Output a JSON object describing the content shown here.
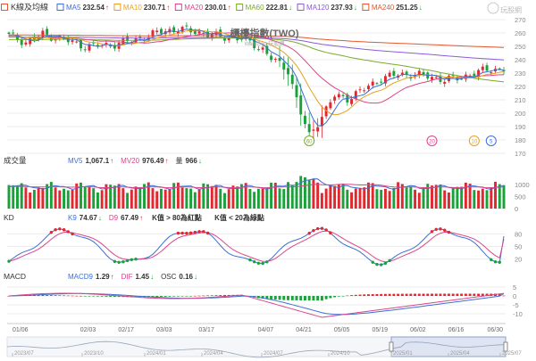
{
  "price_panel": {
    "title": "K線及均線",
    "ma": [
      {
        "label": "MA5",
        "value": "232.54",
        "arrow": "↑",
        "color": "#3d6fd6"
      },
      {
        "label": "MA10",
        "value": "230.71",
        "arrow": "↑",
        "color": "#e7a21f"
      },
      {
        "label": "MA20",
        "value": "230.01",
        "arrow": "↑",
        "color": "#d9468b"
      },
      {
        "label": "MA60",
        "value": "222.81",
        "arrow": "↓",
        "color": "#7aab2a"
      },
      {
        "label": "MA120",
        "value": "237.93",
        "arrow": "↓",
        "color": "#8a5cd6"
      },
      {
        "label": "MA240",
        "value": "251.25",
        "arrow": "↓",
        "color": "#e4572e"
      }
    ],
    "watermark": "櫃檯指數(TWO)",
    "watermark_sub": "WantGoo 玩股網",
    "logo_text": "玩股網",
    "yticks": [
      170,
      180,
      190,
      200,
      210,
      220,
      230,
      240,
      250,
      260,
      270
    ],
    "markers": [
      {
        "label": "60",
        "color": "#7aab2a"
      },
      {
        "label": "20",
        "color": "#d9468b"
      },
      {
        "label": "10",
        "color": "#e7a21f"
      },
      {
        "label": "5",
        "color": "#3d6fd6"
      }
    ]
  },
  "volume_panel": {
    "title": "成交量",
    "items": [
      {
        "label": "MV5",
        "value": "1,067.1",
        "arrow": "↑",
        "color": "#3d6fd6"
      },
      {
        "label": "MV20",
        "value": "976.49",
        "arrow": "↑",
        "color": "#d9468b"
      },
      {
        "label": "量",
        "value": "966",
        "arrow": "↓",
        "color": "#333333"
      }
    ],
    "yticks": [
      0,
      500,
      1000
    ]
  },
  "kd_panel": {
    "title": "KD",
    "items": [
      {
        "label": "K9",
        "value": "74.67",
        "arrow": "↓",
        "color": "#3d6fd6"
      },
      {
        "label": "D9",
        "value": "67.49",
        "arrow": "↑",
        "color": "#d9468b"
      }
    ],
    "notes": [
      "K值 > 80為紅點",
      "K值 < 20為綠點"
    ],
    "yticks": [
      20,
      50,
      80
    ]
  },
  "macd_panel": {
    "title": "MACD",
    "items": [
      {
        "label": "MACD9",
        "value": "1.29",
        "arrow": "↑",
        "color": "#3d6fd6"
      },
      {
        "label": "DIF",
        "value": "1.45",
        "arrow": "↓",
        "color": "#d9468b"
      },
      {
        "label": "OSC",
        "value": "0.16",
        "arrow": "↓",
        "color": "#333333"
      }
    ],
    "yticks": [
      -10,
      -5,
      0,
      5
    ]
  },
  "x_dates": [
    "01/06",
    "02/03",
    "02/17",
    "03/03",
    "03/17",
    "04/07",
    "04/21",
    "05/05",
    "05/19",
    "06/02",
    "06/16",
    "06/30"
  ],
  "nav_labels": [
    "2023/07",
    "2023/10",
    "2024/01",
    "2024/04",
    "2024/07",
    "2024/10",
    "2025/01",
    "2025/04",
    "2025/07"
  ],
  "colors": {
    "up": "#e0282e",
    "down": "#1aa13a",
    "grid": "#ececec",
    "axis": "#9a9a9a"
  },
  "chart_data": {
    "type": "candlestick",
    "dates": [
      "01/06",
      "02/03",
      "02/17",
      "03/03",
      "03/17",
      "04/07",
      "04/21",
      "05/05",
      "05/19",
      "06/02",
      "06/16",
      "06/30"
    ],
    "close_anchors": [
      258,
      254,
      262,
      257,
      240,
      180,
      210,
      228,
      227,
      225,
      232,
      233
    ],
    "ylim_price": [
      170,
      270
    ],
    "ma_latest": {
      "MA5": 232.54,
      "MA10": 230.71,
      "MA20": 230.01,
      "MA60": 222.81,
      "MA120": 237.93,
      "MA240": 251.25
    },
    "volume_latest": 966,
    "kd_latest": {
      "K9": 74.67,
      "D9": 67.49
    },
    "macd_latest": {
      "MACD9": 1.29,
      "DIF": 1.45,
      "OSC": 0.16
    }
  }
}
